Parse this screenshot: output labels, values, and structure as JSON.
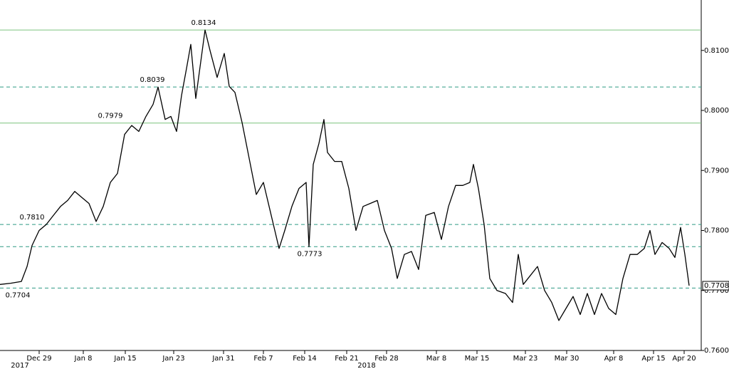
{
  "chart_data": {
    "type": "line",
    "color": "#000000",
    "x": [
      0,
      1.5,
      3,
      3.8,
      4.5,
      5.5,
      6.5,
      7.5,
      8.5,
      9.5,
      10.5,
      11.5,
      12.5,
      13.5,
      14.5,
      15.5,
      16.5,
      17.5,
      18.5,
      19.5,
      20.5,
      21.5,
      22.2,
      23.2,
      24,
      24.8,
      25.5,
      26.2,
      26.8,
      27.5,
      28.3,
      28.8,
      29.5,
      30.5,
      31.5,
      32.2,
      33,
      34,
      35,
      36,
      37,
      38,
      39.2,
      40,
      41,
      42,
      43,
      43.4,
      44,
      44.8,
      45.5,
      46,
      47,
      48,
      49,
      50,
      51,
      52,
      53,
      54,
      55,
      55.8,
      56.8,
      57.8,
      58.8,
      59.8,
      61,
      62,
      63,
      64,
      65,
      66,
      66.5,
      67.2,
      68,
      68.8,
      69.8,
      71,
      72,
      72.8,
      73.5,
      74.5,
      75.5,
      76.5,
      77.5,
      78.5,
      79.5,
      80.5,
      81.5,
      82.5,
      83.5,
      84.5,
      85.5,
      86.5,
      87.5,
      88.5,
      89.5,
      90.5,
      91.3,
      92,
      93,
      94,
      94.8,
      95.6,
      96.2,
      96.8
    ],
    "values": [
      0.771,
      0.7712,
      0.7715,
      0.774,
      0.7775,
      0.78,
      0.781,
      0.7825,
      0.784,
      0.785,
      0.7865,
      0.7855,
      0.7845,
      0.7815,
      0.784,
      0.788,
      0.7895,
      0.796,
      0.7975,
      0.7965,
      0.799,
      0.801,
      0.8039,
      0.7985,
      0.799,
      0.7965,
      0.8025,
      0.807,
      0.811,
      0.802,
      0.809,
      0.8134,
      0.81,
      0.8055,
      0.8095,
      0.804,
      0.803,
      0.798,
      0.792,
      0.786,
      0.788,
      0.783,
      0.777,
      0.78,
      0.784,
      0.787,
      0.788,
      0.7773,
      0.791,
      0.7945,
      0.7985,
      0.793,
      0.7915,
      0.7915,
      0.787,
      0.78,
      0.784,
      0.7845,
      0.785,
      0.78,
      0.777,
      0.772,
      0.776,
      0.7765,
      0.7735,
      0.7825,
      0.783,
      0.7785,
      0.784,
      0.7875,
      0.7875,
      0.788,
      0.791,
      0.787,
      0.781,
      0.772,
      0.77,
      0.7695,
      0.768,
      0.776,
      0.771,
      0.7725,
      0.774,
      0.77,
      0.768,
      0.765,
      0.767,
      0.769,
      0.766,
      0.7695,
      0.766,
      0.7695,
      0.767,
      0.766,
      0.772,
      0.776,
      0.776,
      0.777,
      0.78,
      0.776,
      0.778,
      0.777,
      0.7755,
      0.7805,
      0.776,
      0.7708
    ],
    "xlim": [
      0,
      98.5
    ],
    "xticks": [
      {
        "value": 5.5,
        "label": "Dec 29"
      },
      {
        "value": 11.7,
        "label": "Jan 8"
      },
      {
        "value": 17.6,
        "label": "Jan 15"
      },
      {
        "value": 24.4,
        "label": "Jan 23"
      },
      {
        "value": 31.4,
        "label": "Jan 31"
      },
      {
        "value": 37,
        "label": "Feb 7"
      },
      {
        "value": 42.8,
        "label": "Feb 14"
      },
      {
        "value": 48.7,
        "label": "Feb 21"
      },
      {
        "value": 54.3,
        "label": "Feb 28"
      },
      {
        "value": 61.3,
        "label": "Mar 8"
      },
      {
        "value": 67,
        "label": "Mar 15"
      },
      {
        "value": 73.8,
        "label": "Mar 23"
      },
      {
        "value": 79.6,
        "label": "Mar 30"
      },
      {
        "value": 86.2,
        "label": "Apr 8"
      },
      {
        "value": 91.8,
        "label": "Apr 15"
      },
      {
        "value": 96.1,
        "label": "Apr 20"
      }
    ],
    "year_ticks": [
      {
        "value": 2.8,
        "label": "2017"
      },
      {
        "value": 51.5,
        "label": "2018"
      }
    ],
    "ylim": [
      0.76,
      0.8184
    ],
    "yticks": [
      {
        "value": 0.76,
        "label": "0.7600"
      },
      {
        "value": 0.77,
        "label": "0.7700"
      },
      {
        "value": 0.78,
        "label": "0.7800"
      },
      {
        "value": 0.79,
        "label": "0.7900"
      },
      {
        "value": 0.8,
        "label": "0.8000"
      },
      {
        "value": 0.81,
        "label": "0.8100"
      }
    ],
    "levels": [
      {
        "value": 0.8134,
        "label": "0.8134",
        "style": "solid"
      },
      {
        "value": 0.8039,
        "label": "0.8039",
        "style": "dashed"
      },
      {
        "value": 0.7979,
        "label": "0.7979",
        "style": "solid"
      },
      {
        "value": 0.781,
        "label": "0.7810",
        "style": "dashed"
      },
      {
        "value": 0.7773,
        "label": "0.7773",
        "style": "dashed"
      },
      {
        "value": 0.7704,
        "label": "0.7704",
        "style": "dashed"
      }
    ],
    "solid_color": "#7cc47f",
    "dashed_color": "#2f9a83",
    "last_label": {
      "value": 0.7708,
      "label": "0.7708"
    }
  }
}
